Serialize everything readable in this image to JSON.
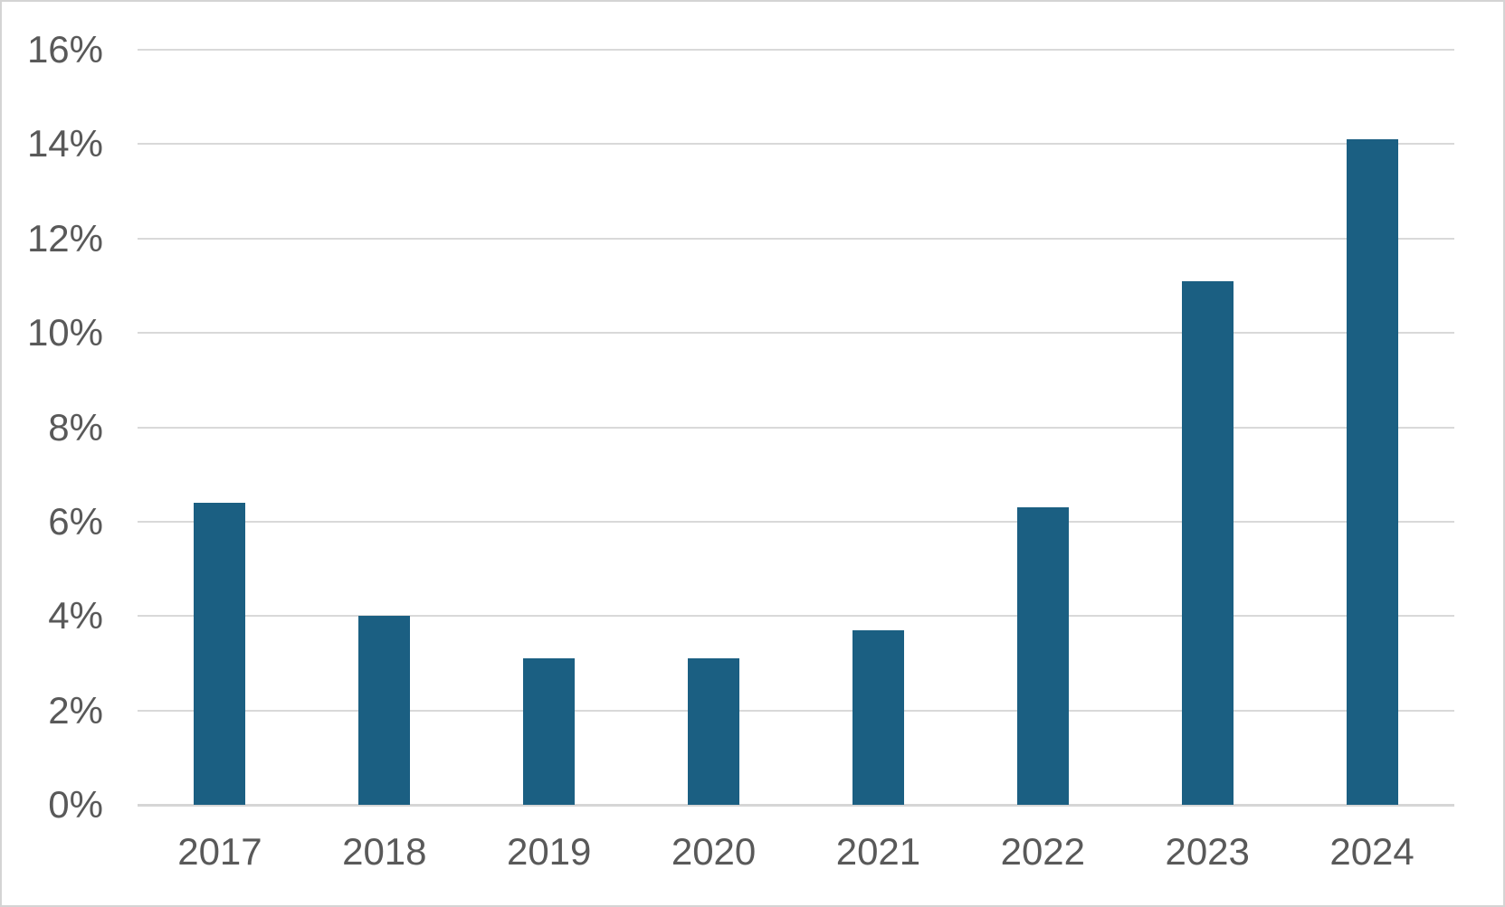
{
  "chart_data": {
    "type": "bar",
    "title": "",
    "xlabel": "",
    "ylabel": "",
    "categories": [
      "2017",
      "2018",
      "2019",
      "2020",
      "2021",
      "2022",
      "2023",
      "2024"
    ],
    "values": [
      6.4,
      4.0,
      3.1,
      3.1,
      3.7,
      6.3,
      11.1,
      14.1
    ],
    "ylim": [
      0,
      16
    ],
    "y_ticks": [
      0,
      2,
      4,
      6,
      8,
      10,
      12,
      14,
      16
    ],
    "y_tick_labels": [
      "0%",
      "2%",
      "4%",
      "6%",
      "8%",
      "10%",
      "12%",
      "14%",
      "16%"
    ],
    "grid": true,
    "legend": false
  },
  "style": {
    "bar_color": "#1b5f82",
    "gridline_color": "#d9d9d9",
    "axis_line_color": "#d6d6d6",
    "tick_text_color": "#595959",
    "background_color": "#ffffff",
    "border_color": "#d4d4d4"
  }
}
